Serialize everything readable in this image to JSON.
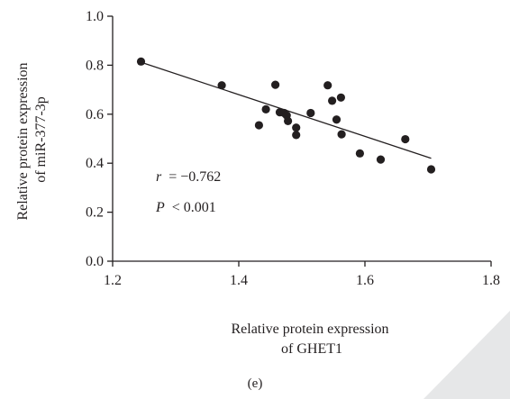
{
  "chart_data": {
    "type": "scatter",
    "xlabel": [
      "Relative protein expression",
      "of GHET1"
    ],
    "ylabel": [
      "Relative protein expression",
      "of miR-377-3p"
    ],
    "xlim": [
      1.2,
      1.8
    ],
    "ylim": [
      0.0,
      1.0
    ],
    "x_ticks": [
      "1.2",
      "1.4",
      "1.6",
      "1.8"
    ],
    "y_ticks": [
      "0.0",
      "0.2",
      "0.4",
      "0.6",
      "0.8",
      "1.0"
    ],
    "points": [
      {
        "x": 1.245,
        "y": 0.815
      },
      {
        "x": 1.373,
        "y": 0.718
      },
      {
        "x": 1.432,
        "y": 0.555
      },
      {
        "x": 1.443,
        "y": 0.62
      },
      {
        "x": 1.458,
        "y": 0.72
      },
      {
        "x": 1.465,
        "y": 0.608
      },
      {
        "x": 1.472,
        "y": 0.605
      },
      {
        "x": 1.476,
        "y": 0.595
      },
      {
        "x": 1.478,
        "y": 0.572
      },
      {
        "x": 1.491,
        "y": 0.545
      },
      {
        "x": 1.491,
        "y": 0.515
      },
      {
        "x": 1.514,
        "y": 0.605
      },
      {
        "x": 1.541,
        "y": 0.718
      },
      {
        "x": 1.548,
        "y": 0.655
      },
      {
        "x": 1.555,
        "y": 0.578
      },
      {
        "x": 1.562,
        "y": 0.668
      },
      {
        "x": 1.563,
        "y": 0.518
      },
      {
        "x": 1.592,
        "y": 0.44
      },
      {
        "x": 1.625,
        "y": 0.415
      },
      {
        "x": 1.664,
        "y": 0.498
      },
      {
        "x": 1.705,
        "y": 0.375
      }
    ],
    "fit_line": {
      "x": [
        1.245,
        1.705
      ],
      "y": [
        0.812,
        0.42
      ]
    },
    "annotations": {
      "r_label": "r",
      "r_value": "= −0.762",
      "p_label": "P",
      "p_value": "< 0.001"
    },
    "grid": false,
    "colors": {
      "points": "#231f20",
      "axes": "#231f20",
      "line": "#231f20",
      "corner": "#e6e7e8"
    }
  },
  "caption": "(e)"
}
